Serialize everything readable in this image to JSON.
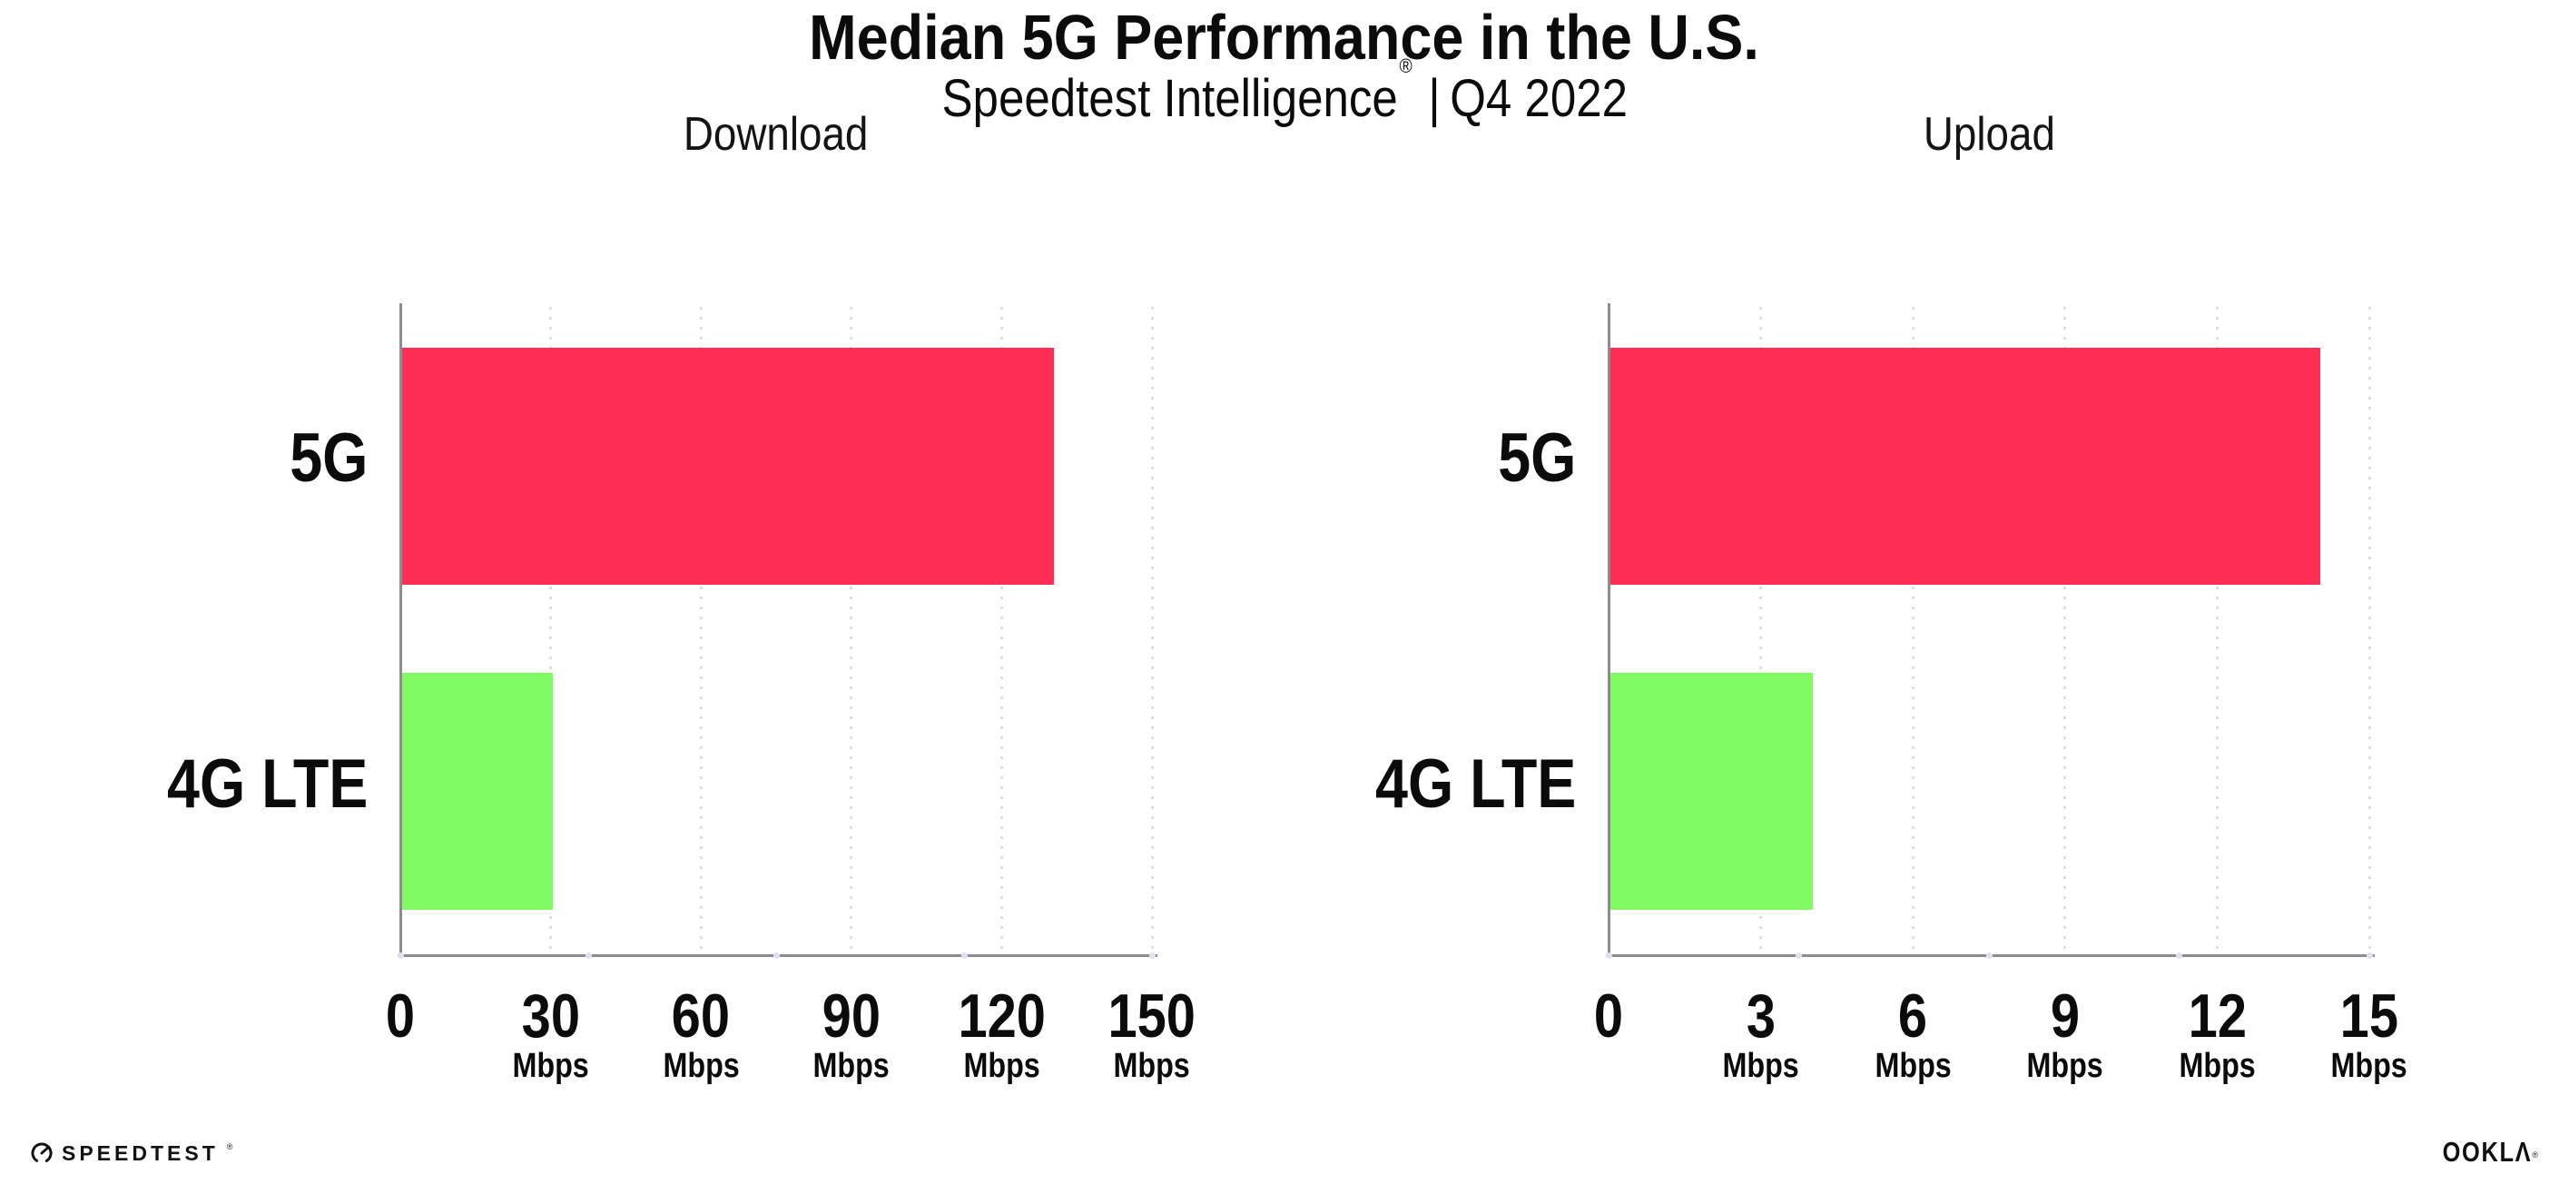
{
  "page": {
    "title": "Median 5G Performance in the U.S.",
    "subtitle": {
      "product": "Speedtest Intelligence",
      "registered": "®",
      "separator": "|",
      "period": "Q4 2022"
    }
  },
  "colors": {
    "bar_5g": "#fc2e56",
    "bar_4g_lte": "#82fa62",
    "gridline": "#d6d9e8",
    "axis": "#8c8c91",
    "axis_dot": "#dfe2ee",
    "text": "#0b0b0b"
  },
  "chart_data": [
    {
      "type": "bar",
      "orientation": "horizontal",
      "title": "Download",
      "categories": [
        "5G",
        "4G LTE"
      ],
      "values": [
        130,
        30
      ],
      "unit": "Mbps",
      "xlim": [
        0,
        150
      ],
      "xticks": [
        0,
        30,
        60,
        90,
        120,
        150
      ],
      "grid": "dotted-vertical",
      "legend": "none",
      "bar_colors": [
        "#fc2e56",
        "#82fa62"
      ]
    },
    {
      "type": "bar",
      "orientation": "horizontal",
      "title": "Upload",
      "categories": [
        "5G",
        "4G LTE"
      ],
      "values": [
        14,
        4
      ],
      "unit": "Mbps",
      "xlim": [
        0,
        15
      ],
      "xticks": [
        0,
        3,
        6,
        9,
        12,
        15
      ],
      "grid": "dotted-vertical",
      "legend": "none",
      "bar_colors": [
        "#fc2e56",
        "#82fa62"
      ]
    }
  ],
  "footer": {
    "speedtest": {
      "label": "SPEEDTEST",
      "mark": "®"
    },
    "ookla": {
      "label": "OOKLΛ",
      "mark": "®"
    }
  }
}
